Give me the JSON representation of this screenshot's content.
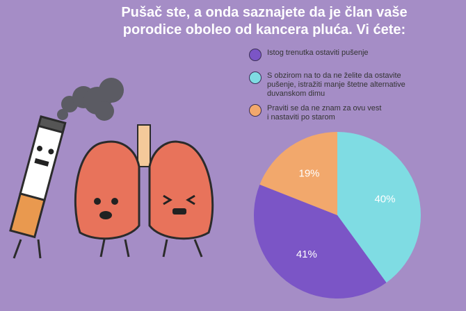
{
  "title": "Pušač ste, a onda saznajete da je član vaše\nporodice oboleo od kancera pluća. Vi ćete:",
  "chart_data": {
    "type": "pie",
    "categories": [
      "Istog trenutka ostaviti pušenje",
      "S obzirom na to da ne želite da ostavite\npušenje, istražiti manje štetne alternative\nduvanskom dimu",
      "Praviti se da ne znam za ovu vest\ni nastaviti po starom"
    ],
    "values": [
      41,
      40,
      19
    ],
    "value_labels": [
      "41%",
      "40%",
      "19%"
    ],
    "colors": [
      "#7b55c6",
      "#7fdce3",
      "#f2a86c"
    ]
  }
}
